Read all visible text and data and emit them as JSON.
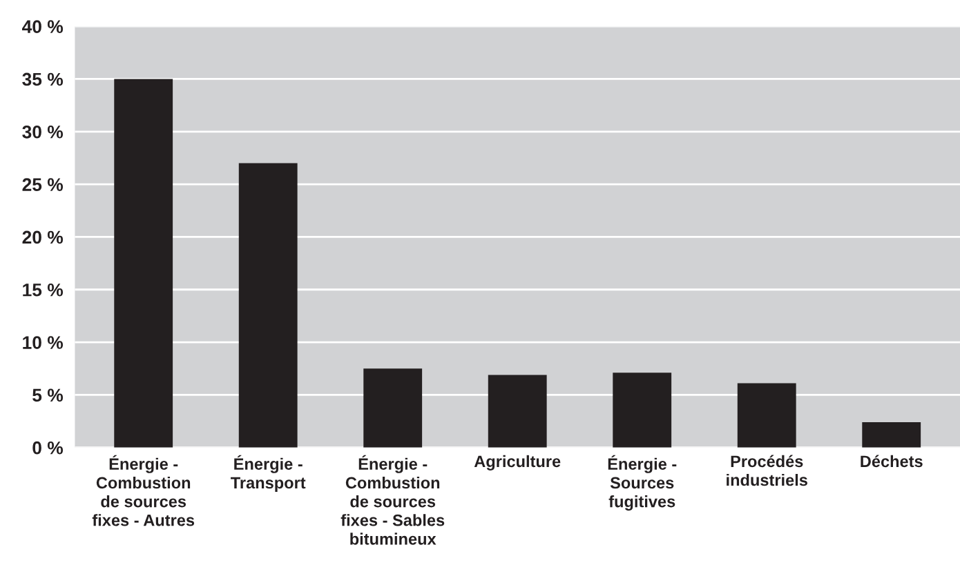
{
  "chart_data": {
    "type": "bar",
    "categories": [
      "Énergie -\nCombustion\nde sources\nfixes - Autres",
      "Énergie -\nTransport",
      "Énergie -\nCombustion\nde sources\nfixes - Sables\nbitumineux",
      "Agriculture",
      "Énergie -\nSources\nfugitives",
      "Procédés\nindustriels",
      "Déchets"
    ],
    "values": [
      35,
      27,
      7.5,
      6.9,
      7.1,
      6.1,
      2.4
    ],
    "color": "#231f20",
    "ylim": [
      0,
      40
    ],
    "yticks": [
      {
        "value": 0,
        "label": "0 %"
      },
      {
        "value": 5,
        "label": "5 %"
      },
      {
        "value": 10,
        "label": "10 %"
      },
      {
        "value": 15,
        "label": "15 %"
      },
      {
        "value": 20,
        "label": "20 %"
      },
      {
        "value": 25,
        "label": "25 %"
      },
      {
        "value": 30,
        "label": "30 %"
      },
      {
        "value": 35,
        "label": "35 %"
      },
      {
        "value": 40,
        "label": "40 %"
      }
    ],
    "grid": "y"
  }
}
